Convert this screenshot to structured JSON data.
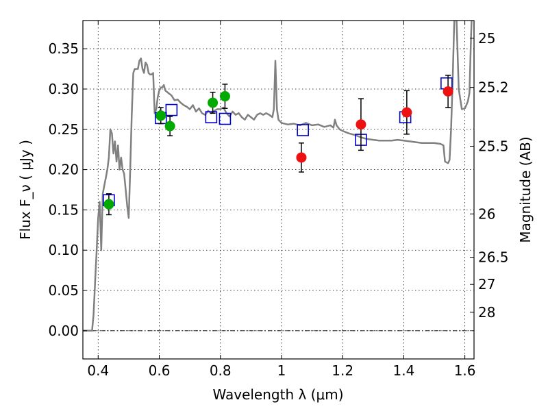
{
  "chart_data": {
    "type": "scatter",
    "xlabel": "Wavelength  λ (μm)",
    "ylabel": "Flux  F_ν  ( μJy )",
    "y2label": "Magnitude (AB)",
    "xlim": [
      0.35,
      1.63
    ],
    "ylim": [
      -0.035,
      0.385
    ],
    "grid": true,
    "x_ticks": [
      0.4,
      0.6,
      0.8,
      1.0,
      1.2,
      1.4,
      1.6
    ],
    "x_tick_labels": [
      "0.4",
      "0.6",
      "0.8",
      "1",
      "1.2",
      "1.4",
      "1.6"
    ],
    "y_ticks": [
      0.0,
      0.05,
      0.1,
      0.15,
      0.2,
      0.25,
      0.3,
      0.35
    ],
    "y_tick_labels": [
      "0.00",
      "0.05",
      "0.10",
      "0.15",
      "0.20",
      "0.25",
      "0.30",
      "0.35"
    ],
    "y2_ticks": [
      {
        "label": "25",
        "flux": 0.363
      },
      {
        "label": "25.2",
        "flux": 0.302
      },
      {
        "label": "25.5",
        "flux": 0.229
      },
      {
        "label": "26",
        "flux": 0.145
      },
      {
        "label": "26.5",
        "flux": 0.0912
      },
      {
        "label": "27",
        "flux": 0.0575
      },
      {
        "label": "28",
        "flux": 0.0229
      }
    ],
    "model_spectrum": {
      "color": "#808080",
      "points": [
        [
          0.35,
          0.0
        ],
        [
          0.37,
          0.0
        ],
        [
          0.38,
          0.0
        ],
        [
          0.385,
          0.02
        ],
        [
          0.39,
          0.06
        ],
        [
          0.395,
          0.1
        ],
        [
          0.4,
          0.14
        ],
        [
          0.405,
          0.16
        ],
        [
          0.41,
          0.1
        ],
        [
          0.415,
          0.17
        ],
        [
          0.42,
          0.18
        ],
        [
          0.425,
          0.19
        ],
        [
          0.43,
          0.2
        ],
        [
          0.435,
          0.215
        ],
        [
          0.44,
          0.25
        ],
        [
          0.445,
          0.245
        ],
        [
          0.45,
          0.22
        ],
        [
          0.455,
          0.235
        ],
        [
          0.46,
          0.21
        ],
        [
          0.465,
          0.23
        ],
        [
          0.47,
          0.2
        ],
        [
          0.475,
          0.215
        ],
        [
          0.48,
          0.2
        ],
        [
          0.485,
          0.195
        ],
        [
          0.49,
          0.175
        ],
        [
          0.495,
          0.155
        ],
        [
          0.5,
          0.14
        ],
        [
          0.505,
          0.2
        ],
        [
          0.51,
          0.27
        ],
        [
          0.515,
          0.32
        ],
        [
          0.52,
          0.325
        ],
        [
          0.53,
          0.325
        ],
        [
          0.535,
          0.335
        ],
        [
          0.54,
          0.338
        ],
        [
          0.545,
          0.325
        ],
        [
          0.55,
          0.32
        ],
        [
          0.555,
          0.333
        ],
        [
          0.56,
          0.33
        ],
        [
          0.565,
          0.32
        ],
        [
          0.57,
          0.318
        ],
        [
          0.575,
          0.318
        ],
        [
          0.58,
          0.32
        ],
        [
          0.585,
          0.27
        ],
        [
          0.59,
          0.275
        ],
        [
          0.595,
          0.29
        ],
        [
          0.6,
          0.298
        ],
        [
          0.605,
          0.302
        ],
        [
          0.61,
          0.302
        ],
        [
          0.615,
          0.305
        ],
        [
          0.62,
          0.298
        ],
        [
          0.63,
          0.295
        ],
        [
          0.64,
          0.292
        ],
        [
          0.65,
          0.286
        ],
        [
          0.66,
          0.287
        ],
        [
          0.67,
          0.283
        ],
        [
          0.68,
          0.28
        ],
        [
          0.69,
          0.278
        ],
        [
          0.7,
          0.275
        ],
        [
          0.71,
          0.28
        ],
        [
          0.72,
          0.272
        ],
        [
          0.73,
          0.276
        ],
        [
          0.74,
          0.27
        ],
        [
          0.75,
          0.268
        ],
        [
          0.76,
          0.273
        ],
        [
          0.77,
          0.27
        ],
        [
          0.78,
          0.273
        ],
        [
          0.79,
          0.275
        ],
        [
          0.8,
          0.275
        ],
        [
          0.81,
          0.277
        ],
        [
          0.82,
          0.27
        ],
        [
          0.83,
          0.266
        ],
        [
          0.84,
          0.272
        ],
        [
          0.85,
          0.268
        ],
        [
          0.86,
          0.27
        ],
        [
          0.87,
          0.265
        ],
        [
          0.88,
          0.262
        ],
        [
          0.89,
          0.268
        ],
        [
          0.9,
          0.265
        ],
        [
          0.91,
          0.262
        ],
        [
          0.92,
          0.268
        ],
        [
          0.93,
          0.27
        ],
        [
          0.94,
          0.268
        ],
        [
          0.95,
          0.27
        ],
        [
          0.96,
          0.268
        ],
        [
          0.97,
          0.265
        ],
        [
          0.975,
          0.275
        ],
        [
          0.98,
          0.335
        ],
        [
          0.985,
          0.275
        ],
        [
          0.99,
          0.262
        ],
        [
          1.0,
          0.258
        ],
        [
          1.02,
          0.256
        ],
        [
          1.04,
          0.257
        ],
        [
          1.06,
          0.255
        ],
        [
          1.08,
          0.258
        ],
        [
          1.1,
          0.255
        ],
        [
          1.12,
          0.256
        ],
        [
          1.14,
          0.253
        ],
        [
          1.16,
          0.255
        ],
        [
          1.17,
          0.252
        ],
        [
          1.175,
          0.262
        ],
        [
          1.18,
          0.255
        ],
        [
          1.19,
          0.25
        ],
        [
          1.2,
          0.248
        ],
        [
          1.22,
          0.245
        ],
        [
          1.24,
          0.243
        ],
        [
          1.26,
          0.24
        ],
        [
          1.28,
          0.238
        ],
        [
          1.3,
          0.237
        ],
        [
          1.32,
          0.236
        ],
        [
          1.34,
          0.236
        ],
        [
          1.36,
          0.236
        ],
        [
          1.38,
          0.237
        ],
        [
          1.4,
          0.236
        ],
        [
          1.42,
          0.235
        ],
        [
          1.44,
          0.234
        ],
        [
          1.46,
          0.233
        ],
        [
          1.48,
          0.233
        ],
        [
          1.5,
          0.233
        ],
        [
          1.52,
          0.232
        ],
        [
          1.53,
          0.23
        ],
        [
          1.535,
          0.21
        ],
        [
          1.545,
          0.208
        ],
        [
          1.55,
          0.212
        ],
        [
          1.555,
          0.25
        ],
        [
          1.56,
          0.31
        ],
        [
          1.565,
          0.38
        ],
        [
          1.57,
          0.42
        ],
        [
          1.58,
          0.3
        ],
        [
          1.59,
          0.275
        ],
        [
          1.6,
          0.276
        ],
        [
          1.605,
          0.28
        ],
        [
          1.61,
          0.285
        ],
        [
          1.615,
          0.295
        ],
        [
          1.62,
          0.36
        ],
        [
          1.625,
          0.42
        ]
      ]
    },
    "series": [
      {
        "marker": "circle",
        "color": "#00aa00",
        "points": [
          {
            "x": 0.435,
            "y": 0.157,
            "err": 0.013
          },
          {
            "x": 0.605,
            "y": 0.267,
            "err": 0.01
          },
          {
            "x": 0.635,
            "y": 0.254,
            "err": 0.012
          },
          {
            "x": 0.775,
            "y": 0.283,
            "err": 0.013
          },
          {
            "x": 0.815,
            "y": 0.291,
            "err": 0.015
          }
        ]
      },
      {
        "marker": "circle",
        "color": "#ee1111",
        "points": [
          {
            "x": 1.065,
            "y": 0.215,
            "err": 0.018
          },
          {
            "x": 1.26,
            "y": 0.256,
            "err": 0.032
          },
          {
            "x": 1.41,
            "y": 0.271,
            "err": 0.027
          },
          {
            "x": 1.545,
            "y": 0.297,
            "err": 0.02
          }
        ]
      },
      {
        "marker": "square",
        "color": "#0000cc",
        "points": [
          {
            "x": 0.435,
            "y": 0.162
          },
          {
            "x": 0.605,
            "y": 0.264
          },
          {
            "x": 0.64,
            "y": 0.274
          },
          {
            "x": 0.77,
            "y": 0.265
          },
          {
            "x": 0.815,
            "y": 0.263
          },
          {
            "x": 1.07,
            "y": 0.249
          },
          {
            "x": 1.26,
            "y": 0.237
          },
          {
            "x": 1.405,
            "y": 0.265
          },
          {
            "x": 1.54,
            "y": 0.307
          }
        ]
      }
    ]
  }
}
